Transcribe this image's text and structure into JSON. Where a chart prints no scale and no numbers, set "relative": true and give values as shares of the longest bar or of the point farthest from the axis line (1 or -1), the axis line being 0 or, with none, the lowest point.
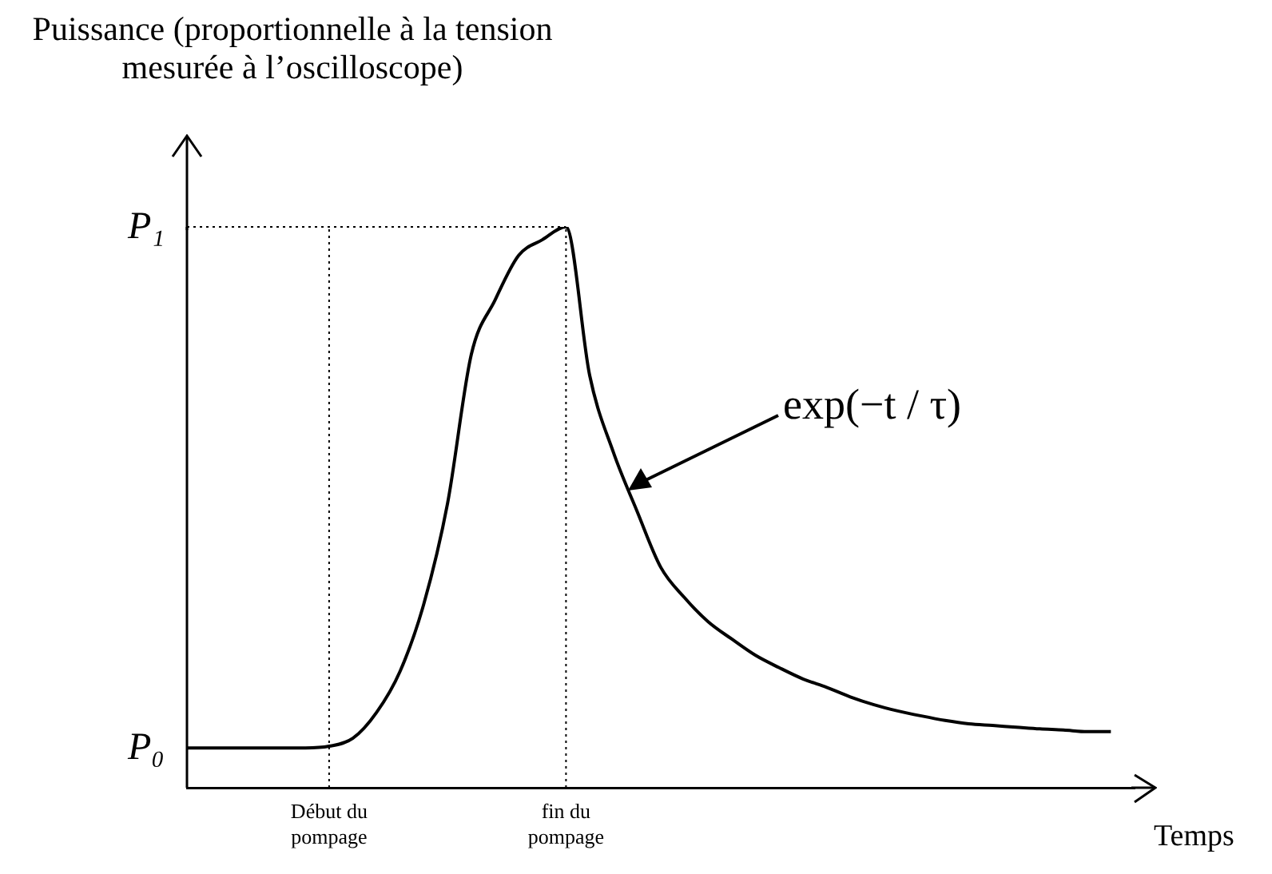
{
  "chart_data": {
    "type": "line",
    "relative": true,
    "color": "#000000",
    "marker": "none",
    "line_style": "solid",
    "categories": [
      null,
      null,
      null,
      null,
      null,
      null,
      "Début du pompage",
      null,
      null,
      null,
      null,
      null,
      null,
      null,
      null,
      null,
      "fin du pompage",
      null,
      null,
      null,
      null,
      null,
      null,
      null,
      null,
      null,
      null,
      null,
      null,
      null,
      null,
      null,
      null,
      null,
      null,
      null,
      null,
      null,
      null,
      null,
      null
    ],
    "values": [
      0.071,
      0.071,
      0.071,
      0.071,
      0.071,
      0.071,
      0.074,
      0.088,
      0.134,
      0.208,
      0.328,
      0.507,
      0.772,
      0.869,
      0.949,
      0.977,
      1.0,
      0.735,
      0.598,
      0.493,
      0.393,
      0.339,
      0.296,
      0.265,
      0.236,
      0.214,
      0.194,
      0.179,
      0.162,
      0.148,
      0.137,
      0.128,
      0.12,
      0.114,
      0.111,
      0.108,
      0.105,
      0.103,
      0.1,
      0.1,
      null
    ],
    "ylabel": "Puissance (proportionnelle à la tension mesurée à l’oscilloscope)",
    "xlabel": "Temps",
    "annotations": [
      "P₁",
      "P₀",
      "exp(−t / τ)"
    ],
    "ref_lines": [
      {
        "axis": "y",
        "value": 1.0,
        "line_style": "dotted"
      },
      {
        "axis": "x",
        "value": "Début du pompage",
        "line_style": "dotted"
      },
      {
        "axis": "x",
        "value": "fin du pompage",
        "line_style": "dotted"
      }
    ]
  }
}
